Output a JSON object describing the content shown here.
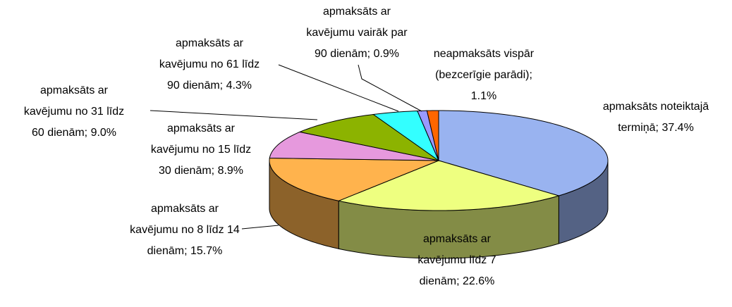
{
  "chart_data": {
    "type": "pie",
    "categories": [
      "apmaksāts noteiktajā termiņā",
      "apmaksāts ar kavējumu līdz 7 dienām",
      "apmaksāts ar kavējumu no 8 līdz 14 dienām",
      "apmaksāts ar kavējumu no 15 līdz 30 dienām",
      "apmaksāts ar kavējumu no 31 līdz 60 dienām",
      "apmaksāts ar kavējumu no 61 līdz 90 dienām",
      "apmaksāts ar kavējumu vairāk par 90 dienām",
      "neapmaksāts vispār (bezcerīgie parādi)"
    ],
    "values": [
      37.4,
      22.6,
      15.7,
      8.9,
      9.0,
      4.3,
      0.9,
      1.1
    ],
    "value_labels": [
      "37.4%",
      "22.6%",
      "15.7%",
      "8.9%",
      "9.0%",
      "4.3%",
      "0.9%",
      "1.1%"
    ],
    "colors": [
      "#99b3f0",
      "#eeff80",
      "#ffb34d",
      "#e699dd",
      "#8cb300",
      "#33ffff",
      "#9999ff",
      "#ff6600"
    ]
  }
}
